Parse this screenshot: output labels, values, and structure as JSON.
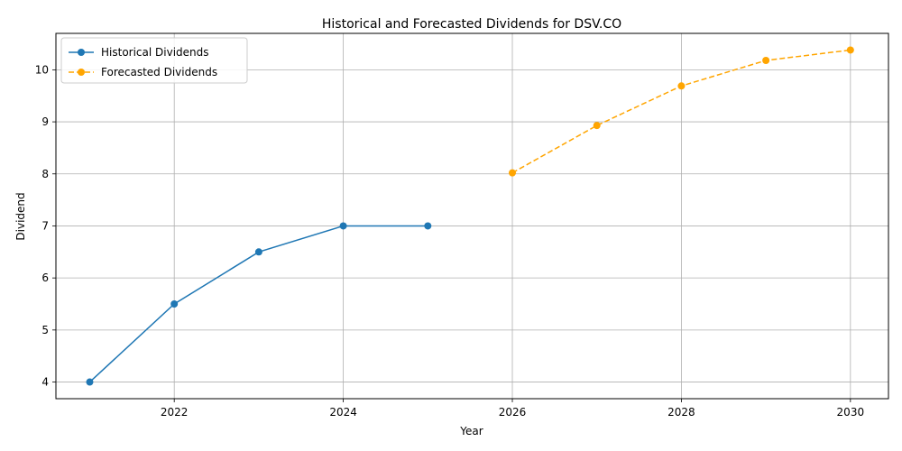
{
  "chart_data": {
    "type": "line",
    "title": "Historical and Forecasted Dividends for DSV.CO",
    "xlabel": "Year",
    "ylabel": "Dividend",
    "xlim": [
      2020.6,
      2030.45
    ],
    "ylim": [
      3.68,
      10.7
    ],
    "xticks": [
      2022,
      2024,
      2026,
      2028,
      2030
    ],
    "xtick_labels": [
      "2022",
      "2024",
      "2026",
      "2028",
      "2030"
    ],
    "yticks": [
      4,
      5,
      6,
      7,
      8,
      9,
      10
    ],
    "ytick_labels": [
      "4",
      "5",
      "6",
      "7",
      "8",
      "9",
      "10"
    ],
    "grid": true,
    "legend_position": "top-left",
    "series": [
      {
        "name": "Historical Dividends",
        "color": "#1f77b4",
        "line_style": "solid",
        "marker": "circle",
        "x": [
          2021,
          2022,
          2023,
          2024,
          2025
        ],
        "y": [
          4.0,
          5.5,
          6.5,
          7.0,
          7.0
        ]
      },
      {
        "name": "Forecasted Dividends",
        "color": "#ffa500",
        "line_style": "dashed",
        "marker": "circle",
        "x": [
          2026,
          2027,
          2028,
          2029,
          2030
        ],
        "y": [
          8.02,
          8.93,
          9.69,
          10.18,
          10.38
        ]
      }
    ]
  }
}
